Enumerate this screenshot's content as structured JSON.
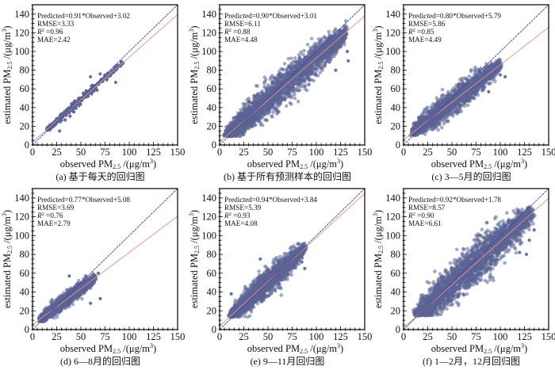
{
  "figure": {
    "axis_common": {
      "xlabel": "observed PM",
      "xlabel_sub": "2.5",
      "xlabel_unit": " /(μg/m",
      "xlabel_sup": "3",
      "xlabel_close": ")",
      "ylabel": "estimated PM",
      "ylabel_sub": "2.5",
      "ylabel_unit": " /(μg/m",
      "ylabel_sup": "3",
      "ylabel_close": ")",
      "xlim": [
        0,
        150
      ],
      "ylim": [
        0,
        150
      ],
      "xticks": [
        0,
        25,
        50,
        75,
        100,
        125,
        150
      ],
      "yticks": [
        0,
        20,
        40,
        60,
        80,
        100,
        120,
        140
      ],
      "reference_line": "1:1",
      "colors": {
        "points": "#5b6594",
        "one_to_one_line": "#3b3fa8",
        "fit_line": "#e8908f",
        "frame": "#000000"
      }
    }
  },
  "chart_data": [
    {
      "type": "scatter",
      "panel": "a",
      "caption": "(a) 基于每天的回归图",
      "title": "",
      "xlabel": "observed PM2.5 /(μg/m3)",
      "ylabel": "estimated PM2.5 /(μg/m3)",
      "xlim": [
        0,
        150
      ],
      "ylim": [
        0,
        150
      ],
      "fit": {
        "slope": 0.91,
        "intercept": 3.02
      },
      "stats": {
        "equation": "Predicted=0.91*Observed+3.02",
        "rmse_label": "RMSE=3.33",
        "r2_label": "=0.96",
        "mae_label": "MAE=2.42"
      },
      "cloud": {
        "x_range": [
          15,
          93
        ],
        "spread": 3.5,
        "n": 260,
        "density": "sparse"
      },
      "outliers": [
        [
          28,
          15
        ],
        [
          60,
          73
        ],
        [
          86,
          67
        ],
        [
          93,
          87
        ],
        [
          87,
          84
        ],
        [
          70,
          76
        ]
      ]
    },
    {
      "type": "scatter",
      "panel": "b",
      "caption": "(b) 基于所有预测样本的回归图",
      "title": "",
      "xlabel": "observed PM2.5 /(μg/m3)",
      "ylabel": "estimated PM2.5 /(μg/m3)",
      "xlim": [
        0,
        150
      ],
      "ylim": [
        0,
        150
      ],
      "fit": {
        "slope": 0.9,
        "intercept": 3.01
      },
      "stats": {
        "equation": "Predicted=0.90*Observed+3.01",
        "rmse_label": "RMSE=6.11",
        "r2_label": "=0.88",
        "mae_label": "MAE=4.48"
      },
      "cloud": {
        "x_range": [
          8,
          130
        ],
        "spread": 14,
        "n": 2600,
        "density": "dense"
      },
      "outliers": [
        [
          113,
          115
        ],
        [
          125,
          105
        ],
        [
          133,
          90
        ],
        [
          132,
          100
        ],
        [
          120,
          80
        ]
      ]
    },
    {
      "type": "scatter",
      "panel": "c",
      "caption": "(c) 3—5月的回归图",
      "title": "",
      "xlabel": "observed PM2.5 /(μg/m3)",
      "ylabel": "estimated PM2.5 /(μg/m3)",
      "xlim": [
        0,
        150
      ],
      "ylim": [
        0,
        150
      ],
      "fit": {
        "slope": 0.8,
        "intercept": 5.79
      },
      "stats": {
        "equation": "Predicted=0.80*Observed+5.79",
        "rmse_label": "RMSE=5.86",
        "r2_label": "=0.85",
        "mae_label": "MAE=4.49"
      },
      "cloud": {
        "x_range": [
          10,
          100
        ],
        "spread": 10,
        "n": 2000,
        "density": "dense"
      },
      "outliers": [
        [
          100,
          75
        ],
        [
          105,
          73
        ],
        [
          88,
          57
        ]
      ]
    },
    {
      "type": "scatter",
      "panel": "d",
      "caption": "(d) 6—8月的回归图",
      "title": "",
      "xlabel": "observed PM2.5 /(μg/m3)",
      "ylabel": "estimated PM2.5 /(μg/m3)",
      "xlim": [
        0,
        150
      ],
      "ylim": [
        0,
        150
      ],
      "fit": {
        "slope": 0.77,
        "intercept": 5.08
      },
      "stats": {
        "equation": "Predicted=0.77*Observed+5.08",
        "rmse_label": "RMSE=3.69",
        "r2_label": "=0.76",
        "mae_label": "MAE=2.79"
      },
      "cloud": {
        "x_range": [
          8,
          65
        ],
        "spread": 6,
        "n": 1600,
        "density": "dense"
      },
      "outliers": [
        [
          38,
          57
        ],
        [
          55,
          57
        ],
        [
          62,
          56
        ],
        [
          68,
          60
        ],
        [
          70,
          33
        ],
        [
          60,
          28
        ],
        [
          45,
          42
        ]
      ]
    },
    {
      "type": "scatter",
      "panel": "e",
      "caption": "(e) 9—11月回归图",
      "title": "",
      "xlabel": "observed PM2.5 /(μg/m3)",
      "ylabel": "estimated PM2.5 /(μg/m3)",
      "xlim": [
        0,
        150
      ],
      "ylim": [
        0,
        150
      ],
      "fit": {
        "slope": 0.94,
        "intercept": 3.84
      },
      "stats": {
        "equation": "Predicted=0.94*Observed+3.84",
        "rmse_label": "RMSE=5.39",
        "r2_label": "=0.93",
        "mae_label": "MAE=4.08"
      },
      "cloud": {
        "x_range": [
          12,
          88
        ],
        "spread": 10,
        "n": 2000,
        "density": "dense"
      },
      "outliers": [
        [
          88,
          65
        ],
        [
          85,
          72
        ],
        [
          42,
          75
        ],
        [
          12,
          38
        ]
      ]
    },
    {
      "type": "scatter",
      "panel": "f",
      "caption": "(f) 1—2月，12月回归图",
      "title": "",
      "xlabel": "observed PM2.5 /(μg/m3)",
      "ylabel": "estimated PM2.5 /(μg/m3)",
      "xlim": [
        0,
        150
      ],
      "ylim": [
        0,
        150
      ],
      "fit": {
        "slope": 0.92,
        "intercept": 1.78
      },
      "stats": {
        "equation": "Predicted=0.92*Observed+1.78",
        "rmse_label": "RMSE=8.57",
        "r2_label": "=0.90",
        "mae_label": "MAE=6.61"
      },
      "cloud": {
        "x_range": [
          14,
          132
        ],
        "spread": 16,
        "n": 2800,
        "density": "dense"
      },
      "outliers": [
        [
          113,
          116
        ],
        [
          135,
          106
        ],
        [
          127,
          80
        ],
        [
          120,
          82
        ],
        [
          130,
          95
        ]
      ]
    }
  ]
}
